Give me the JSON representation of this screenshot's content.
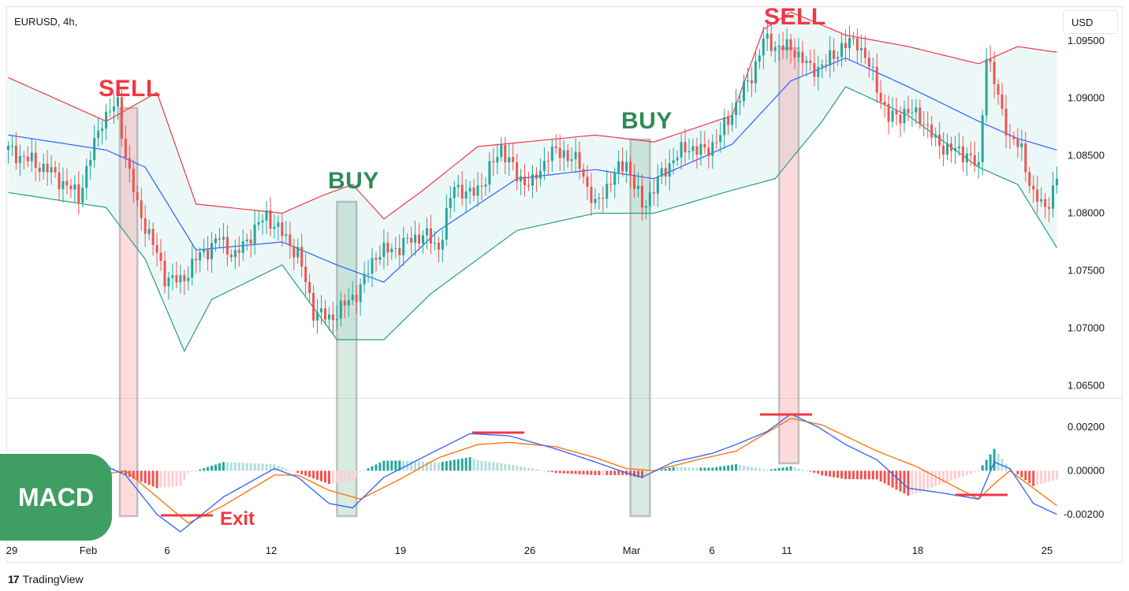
{
  "symbol_title": "EURUSD, 4h,",
  "currency": "USD",
  "footer": {
    "brand": "TradingView",
    "logo_icon": "tradingview-logo-icon"
  },
  "annotations": {
    "sell1": "SELL",
    "buy1": "BUY",
    "buy2": "BUY",
    "sell2": "SELL",
    "macd": "MACD",
    "exit": "Exit"
  },
  "colors": {
    "up": "#26a69a",
    "down": "#ef5350",
    "sell": "#f23645",
    "buy": "#2e8b57",
    "bb_upper": "#f23645",
    "bb_lower": "#2a9d7f",
    "bb_mid": "#2962ff",
    "macd_line": "#2962ff",
    "signal_line": "#ff6d00"
  },
  "price_axis": [
    "1.09500",
    "1.09000",
    "1.08500",
    "1.08000",
    "1.07500",
    "1.07000",
    "1.06500"
  ],
  "macd_axis": [
    "0.00200",
    "0.00000",
    "-0.00200"
  ],
  "time_axis": [
    "29",
    "Feb",
    "6",
    "12",
    "19",
    "26",
    "Mar",
    "6",
    "11",
    "18",
    "25"
  ],
  "chart_data": {
    "type": "candlestick",
    "symbol": "EURUSD",
    "timeframe": "4h",
    "ylim": [
      1.064,
      1.098
    ],
    "x_ticks": [
      "29",
      "Feb",
      "6",
      "12",
      "19",
      "26",
      "Mar",
      "6",
      "11",
      "18",
      "25"
    ],
    "close_anchors": [
      [
        0,
        1.0855
      ],
      [
        10,
        1.0838
      ],
      [
        18,
        1.0815
      ],
      [
        24,
        1.0882
      ],
      [
        28,
        1.0895
      ],
      [
        30,
        1.085
      ],
      [
        33,
        1.0805
      ],
      [
        36,
        1.0782
      ],
      [
        40,
        1.0745
      ],
      [
        44,
        1.074
      ],
      [
        48,
        1.076
      ],
      [
        54,
        1.0778
      ],
      [
        58,
        1.0762
      ],
      [
        62,
        1.0782
      ],
      [
        66,
        1.0798
      ],
      [
        70,
        1.0782
      ],
      [
        74,
        1.0765
      ],
      [
        78,
        1.0715
      ],
      [
        82,
        1.0708
      ],
      [
        86,
        1.072
      ],
      [
        90,
        1.0735
      ],
      [
        94,
        1.0765
      ],
      [
        98,
        1.0768
      ],
      [
        102,
        1.0775
      ],
      [
        106,
        1.0782
      ],
      [
        110,
        1.077
      ],
      [
        114,
        1.0825
      ],
      [
        118,
        1.0815
      ],
      [
        122,
        1.083
      ],
      [
        126,
        1.0858
      ],
      [
        130,
        1.0832
      ],
      [
        134,
        1.0825
      ],
      [
        138,
        1.0852
      ],
      [
        142,
        1.0853
      ],
      [
        146,
        1.0842
      ],
      [
        150,
        1.0805
      ],
      [
        154,
        1.083
      ],
      [
        158,
        1.0845
      ],
      [
        162,
        1.0805
      ],
      [
        166,
        1.0828
      ],
      [
        170,
        1.0848
      ],
      [
        174,
        1.0858
      ],
      [
        178,
        1.0853
      ],
      [
        182,
        1.0868
      ],
      [
        186,
        1.0895
      ],
      [
        190,
        1.092
      ],
      [
        193,
        1.095
      ],
      [
        197,
        1.0945
      ],
      [
        201,
        1.0942
      ],
      [
        205,
        1.0925
      ],
      [
        209,
        1.093
      ],
      [
        213,
        1.0945
      ],
      [
        217,
        1.095
      ],
      [
        221,
        1.092
      ],
      [
        225,
        1.0882
      ],
      [
        229,
        1.0888
      ],
      [
        233,
        1.0885
      ],
      [
        237,
        1.0862
      ],
      [
        241,
        1.0855
      ],
      [
        245,
        1.0852
      ],
      [
        248,
        1.0838
      ],
      [
        250,
        1.094
      ],
      [
        253,
        1.09
      ],
      [
        256,
        1.0865
      ],
      [
        259,
        1.0855
      ],
      [
        262,
        1.0815
      ],
      [
        265,
        1.0805
      ],
      [
        268,
        1.0828
      ]
    ],
    "bollinger": {
      "upper": [
        [
          0,
          1.0918
        ],
        [
          25,
          1.088
        ],
        [
          38,
          1.0905
        ],
        [
          48,
          1.0808
        ],
        [
          70,
          1.08
        ],
        [
          80,
          1.0815
        ],
        [
          88,
          1.0825
        ],
        [
          96,
          1.0795
        ],
        [
          106,
          1.082
        ],
        [
          120,
          1.0858
        ],
        [
          150,
          1.0868
        ],
        [
          165,
          1.0862
        ],
        [
          185,
          1.0885
        ],
        [
          193,
          1.096
        ],
        [
          200,
          1.0975
        ],
        [
          214,
          1.0955
        ],
        [
          230,
          1.0945
        ],
        [
          248,
          1.093
        ],
        [
          258,
          1.0945
        ],
        [
          268,
          1.094
        ]
      ],
      "middle": [
        [
          0,
          1.0868
        ],
        [
          25,
          1.0855
        ],
        [
          35,
          1.084
        ],
        [
          48,
          1.0768
        ],
        [
          70,
          1.0775
        ],
        [
          84,
          1.0755
        ],
        [
          96,
          1.074
        ],
        [
          110,
          1.0785
        ],
        [
          130,
          1.083
        ],
        [
          150,
          1.0838
        ],
        [
          165,
          1.083
        ],
        [
          185,
          1.086
        ],
        [
          200,
          1.0915
        ],
        [
          214,
          1.0935
        ],
        [
          230,
          1.091
        ],
        [
          248,
          1.088
        ],
        [
          258,
          1.0865
        ],
        [
          268,
          1.0855
        ]
      ],
      "lower": [
        [
          0,
          1.0818
        ],
        [
          25,
          1.0805
        ],
        [
          35,
          1.076
        ],
        [
          45,
          1.068
        ],
        [
          52,
          1.0725
        ],
        [
          70,
          1.0755
        ],
        [
          84,
          1.069
        ],
        [
          96,
          1.069
        ],
        [
          108,
          1.073
        ],
        [
          130,
          1.0785
        ],
        [
          150,
          1.08
        ],
        [
          165,
          1.08
        ],
        [
          185,
          1.082
        ],
        [
          196,
          1.083
        ],
        [
          208,
          1.088
        ],
        [
          214,
          1.091
        ],
        [
          230,
          1.0885
        ],
        [
          248,
          1.084
        ],
        [
          258,
          1.0825
        ],
        [
          268,
          1.077
        ]
      ]
    },
    "macd": {
      "ylim": [
        -0.0032,
        0.0033
      ],
      "macd_line": [
        [
          0,
          0.0
        ],
        [
          10,
          -0.0003
        ],
        [
          20,
          -0.0004
        ],
        [
          25,
          0.0002
        ],
        [
          30,
          -0.0002
        ],
        [
          38,
          -0.002
        ],
        [
          44,
          -0.0028
        ],
        [
          55,
          -0.0012
        ],
        [
          68,
          0.0001
        ],
        [
          74,
          -0.0003
        ],
        [
          82,
          -0.0015
        ],
        [
          88,
          -0.0017
        ],
        [
          96,
          -0.0003
        ],
        [
          108,
          0.0008
        ],
        [
          118,
          0.0017
        ],
        [
          128,
          0.0016
        ],
        [
          140,
          0.001
        ],
        [
          150,
          0.0004
        ],
        [
          158,
          -0.0001
        ],
        [
          162,
          -0.0003
        ],
        [
          170,
          0.0004
        ],
        [
          180,
          0.0008
        ],
        [
          186,
          0.0012
        ],
        [
          194,
          0.0018
        ],
        [
          200,
          0.0026
        ],
        [
          207,
          0.002
        ],
        [
          214,
          0.0012
        ],
        [
          222,
          0.0005
        ],
        [
          230,
          -0.0008
        ],
        [
          238,
          -0.001
        ],
        [
          248,
          -0.0013
        ],
        [
          252,
          0.0004
        ],
        [
          256,
          0.0001
        ],
        [
          262,
          -0.0015
        ],
        [
          268,
          -0.002
        ]
      ],
      "signal_line": [
        [
          0,
          0.0
        ],
        [
          20,
          -0.0003
        ],
        [
          30,
          0.0
        ],
        [
          38,
          -0.0012
        ],
        [
          46,
          -0.0024
        ],
        [
          55,
          -0.0016
        ],
        [
          68,
          -0.0002
        ],
        [
          74,
          -0.0002
        ],
        [
          82,
          -0.0009
        ],
        [
          90,
          -0.0013
        ],
        [
          100,
          -0.0004
        ],
        [
          110,
          0.0006
        ],
        [
          120,
          0.0012
        ],
        [
          128,
          0.0013
        ],
        [
          140,
          0.0011
        ],
        [
          150,
          0.0006
        ],
        [
          158,
          0.0001
        ],
        [
          165,
          0.0
        ],
        [
          176,
          0.0005
        ],
        [
          186,
          0.0009
        ],
        [
          200,
          0.0024
        ],
        [
          208,
          0.0021
        ],
        [
          222,
          0.0009
        ],
        [
          232,
          0.0002
        ],
        [
          248,
          -0.0013
        ],
        [
          252,
          -0.0006
        ],
        [
          256,
          0.0
        ],
        [
          262,
          -0.0008
        ],
        [
          268,
          -0.0016
        ]
      ]
    },
    "signals": [
      {
        "type": "SELL",
        "start": 28.5,
        "end": 33
      },
      {
        "type": "BUY",
        "start": 84,
        "end": 89
      },
      {
        "type": "BUY",
        "start": 159,
        "end": 164
      },
      {
        "type": "SELL",
        "start": 197,
        "end": 202
      }
    ]
  }
}
